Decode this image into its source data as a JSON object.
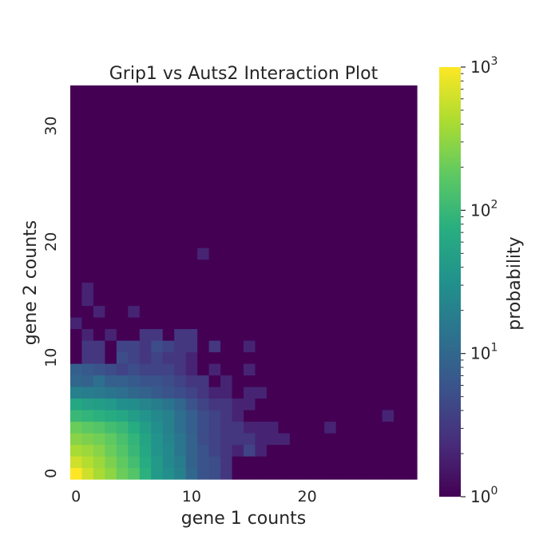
{
  "chart_data": {
    "type": "heatmap",
    "title": "Grip1 vs Auts2 Interaction Plot",
    "xlabel": "gene 1 counts",
    "ylabel": "gene 2 counts",
    "x_ticks": [
      "0",
      "10",
      "20"
    ],
    "y_ticks": [
      "0",
      "10",
      "20",
      "30"
    ],
    "x_range": [
      0,
      29
    ],
    "y_range": [
      0,
      33
    ],
    "colorscale": "viridis",
    "color_scale_type": "log",
    "colorbar": {
      "label": "probability",
      "range": [
        1,
        1000
      ],
      "ticks": [
        {
          "base": "10",
          "exp": "0"
        },
        {
          "base": "10",
          "exp": "1"
        },
        {
          "base": "10",
          "exp": "2"
        },
        {
          "base": "10",
          "exp": "3"
        }
      ]
    },
    "background_value": 1,
    "rows": [
      {
        "y": 0,
        "values": [
          1000,
          600,
          400,
          300,
          200,
          150,
          80,
          40,
          30,
          20,
          10,
          6,
          5,
          3
        ]
      },
      {
        "y": 1,
        "values": [
          600,
          450,
          350,
          250,
          180,
          120,
          70,
          40,
          25,
          18,
          9,
          6,
          5,
          3,
          1,
          1,
          1,
          1
        ]
      },
      {
        "y": 2,
        "values": [
          400,
          350,
          280,
          200,
          150,
          100,
          60,
          35,
          25,
          15,
          9,
          6,
          4,
          3,
          2,
          4,
          2
        ]
      },
      {
        "y": 3,
        "values": [
          280,
          250,
          220,
          180,
          130,
          90,
          55,
          35,
          22,
          15,
          9,
          5,
          4,
          3,
          3,
          3,
          2,
          2,
          2
        ]
      },
      {
        "y": 4,
        "values": [
          200,
          170,
          150,
          120,
          100,
          70,
          45,
          30,
          20,
          12,
          8,
          5,
          4,
          3,
          3,
          2,
          2,
          2,
          1,
          1,
          1,
          1,
          2
        ]
      },
      {
        "y": 5,
        "values": [
          100,
          90,
          80,
          70,
          60,
          45,
          35,
          25,
          20,
          12,
          8,
          5,
          4,
          3,
          2,
          1,
          1,
          1,
          1,
          1,
          1,
          1,
          1,
          1,
          1,
          1,
          1,
          2
        ]
      },
      {
        "y": 6,
        "values": [
          60,
          50,
          45,
          40,
          30,
          28,
          22,
          18,
          14,
          10,
          6,
          4,
          3,
          3,
          2,
          2,
          1
        ]
      },
      {
        "y": 7,
        "values": [
          20,
          18,
          16,
          14,
          12,
          10,
          9,
          7,
          6,
          5,
          4,
          3,
          2,
          2,
          1,
          2,
          2
        ]
      },
      {
        "y": 8,
        "values": [
          10,
          9,
          12,
          8,
          8,
          7,
          6,
          6,
          5,
          4,
          3,
          3,
          1,
          2,
          1,
          1
        ]
      },
      {
        "y": 9,
        "values": [
          8,
          7,
          6,
          5,
          4,
          5,
          4,
          4,
          4,
          3,
          2,
          1,
          2,
          1,
          1,
          2
        ]
      },
      {
        "y": 10,
        "values": [
          1,
          3,
          3,
          1,
          5,
          4,
          3,
          4,
          3,
          3,
          2,
          1,
          1,
          1,
          1,
          1
        ]
      },
      {
        "y": 11,
        "values": [
          1,
          3,
          3,
          1,
          4,
          4,
          3,
          5,
          4,
          3,
          3,
          1,
          3,
          1,
          1,
          2
        ]
      },
      {
        "y": 12,
        "values": [
          1,
          2,
          1,
          2,
          1,
          1,
          3,
          3,
          1,
          3,
          3
        ]
      },
      {
        "y": 13,
        "values": [
          2
        ]
      },
      {
        "y": 14,
        "values": [
          1,
          1,
          2,
          1,
          1,
          2
        ]
      },
      {
        "y": 15,
        "values": [
          1,
          2
        ]
      },
      {
        "y": 16,
        "values": [
          1,
          2
        ]
      },
      {
        "y": 19,
        "values": [
          1,
          1,
          1,
          1,
          1,
          1,
          1,
          1,
          1,
          1,
          1,
          2
        ]
      }
    ]
  }
}
